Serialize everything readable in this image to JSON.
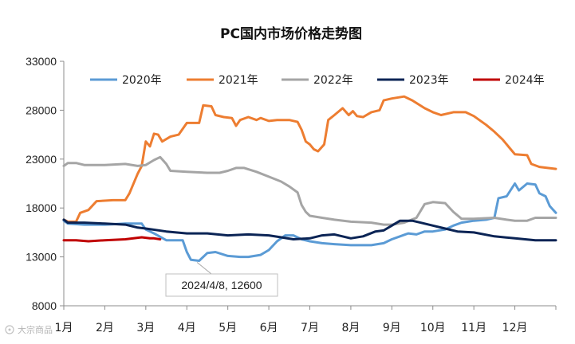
{
  "chart_data": {
    "type": "line",
    "title": "PC国内市场价格走势图",
    "xlabel": "",
    "ylabel": "",
    "ylim": [
      8000,
      33000
    ],
    "yticks": [
      8000,
      13000,
      18000,
      23000,
      28000,
      33000
    ],
    "grid": false,
    "legend_position": "top",
    "x_categories": [
      "1月",
      "2月",
      "3月",
      "4月",
      "5月",
      "6月",
      "7月",
      "8月",
      "9月",
      "10月",
      "11月",
      "12月"
    ],
    "x_unit": "month",
    "series": [
      {
        "name": "2020年",
        "color": "#5b9bd5",
        "points": [
          [
            1.0,
            16700
          ],
          [
            1.1,
            16400
          ],
          [
            1.5,
            16300
          ],
          [
            2.0,
            16300
          ],
          [
            2.5,
            16400
          ],
          [
            2.9,
            16400
          ],
          [
            3.0,
            15800
          ],
          [
            3.2,
            15400
          ],
          [
            3.5,
            14700
          ],
          [
            3.9,
            14700
          ],
          [
            4.0,
            13500
          ],
          [
            4.1,
            12700
          ],
          [
            4.3,
            12600
          ],
          [
            4.5,
            13400
          ],
          [
            4.7,
            13500
          ],
          [
            5.0,
            13100
          ],
          [
            5.3,
            13000
          ],
          [
            5.5,
            13000
          ],
          [
            5.8,
            13200
          ],
          [
            6.0,
            13700
          ],
          [
            6.2,
            14600
          ],
          [
            6.4,
            15200
          ],
          [
            6.6,
            15200
          ],
          [
            6.8,
            14800
          ],
          [
            7.0,
            14600
          ],
          [
            7.3,
            14400
          ],
          [
            7.6,
            14300
          ],
          [
            8.0,
            14200
          ],
          [
            8.5,
            14200
          ],
          [
            8.8,
            14400
          ],
          [
            9.0,
            14800
          ],
          [
            9.2,
            15100
          ],
          [
            9.4,
            15400
          ],
          [
            9.6,
            15300
          ],
          [
            9.8,
            15600
          ],
          [
            10.0,
            15600
          ],
          [
            10.3,
            15800
          ],
          [
            10.5,
            16200
          ],
          [
            10.7,
            16500
          ],
          [
            11.0,
            16700
          ],
          [
            11.3,
            16800
          ],
          [
            11.5,
            17000
          ],
          [
            11.6,
            19000
          ],
          [
            11.8,
            19200
          ],
          [
            12.0,
            20500
          ],
          [
            12.1,
            19800
          ],
          [
            12.3,
            20500
          ],
          [
            12.5,
            20400
          ],
          [
            12.6,
            19500
          ],
          [
            12.75,
            19200
          ],
          [
            12.85,
            18200
          ],
          [
            13.0,
            17500
          ]
        ]
      },
      {
        "name": "2021年",
        "color": "#ed7d31",
        "points": [
          [
            1.0,
            16800
          ],
          [
            1.1,
            16600
          ],
          [
            1.3,
            16600
          ],
          [
            1.4,
            17500
          ],
          [
            1.6,
            17800
          ],
          [
            1.8,
            18700
          ],
          [
            2.2,
            18800
          ],
          [
            2.5,
            18800
          ],
          [
            2.6,
            19500
          ],
          [
            2.8,
            21500
          ],
          [
            2.9,
            22300
          ],
          [
            3.0,
            24800
          ],
          [
            3.1,
            24300
          ],
          [
            3.2,
            25600
          ],
          [
            3.3,
            25500
          ],
          [
            3.4,
            24800
          ],
          [
            3.6,
            25300
          ],
          [
            3.8,
            25500
          ],
          [
            4.0,
            26700
          ],
          [
            4.3,
            26700
          ],
          [
            4.4,
            28500
          ],
          [
            4.6,
            28400
          ],
          [
            4.7,
            27500
          ],
          [
            4.9,
            27300
          ],
          [
            5.1,
            27200
          ],
          [
            5.2,
            26400
          ],
          [
            5.3,
            27000
          ],
          [
            5.5,
            27300
          ],
          [
            5.7,
            27000
          ],
          [
            5.8,
            27200
          ],
          [
            6.0,
            26900
          ],
          [
            6.2,
            27000
          ],
          [
            6.5,
            27000
          ],
          [
            6.7,
            26800
          ],
          [
            6.8,
            26000
          ],
          [
            6.9,
            24800
          ],
          [
            7.0,
            24500
          ],
          [
            7.1,
            24000
          ],
          [
            7.2,
            23800
          ],
          [
            7.35,
            24500
          ],
          [
            7.45,
            27000
          ],
          [
            7.6,
            27500
          ],
          [
            7.8,
            28200
          ],
          [
            7.95,
            27500
          ],
          [
            8.05,
            27900
          ],
          [
            8.15,
            27400
          ],
          [
            8.3,
            27300
          ],
          [
            8.5,
            27800
          ],
          [
            8.7,
            28000
          ],
          [
            8.8,
            29000
          ],
          [
            9.0,
            29200
          ],
          [
            9.3,
            29400
          ],
          [
            9.5,
            29000
          ],
          [
            9.8,
            28200
          ],
          [
            10.0,
            27800
          ],
          [
            10.2,
            27500
          ],
          [
            10.5,
            27800
          ],
          [
            10.8,
            27800
          ],
          [
            11.0,
            27400
          ],
          [
            11.3,
            26500
          ],
          [
            11.5,
            25800
          ],
          [
            11.7,
            25000
          ],
          [
            11.9,
            24000
          ],
          [
            12.0,
            23500
          ],
          [
            12.3,
            23400
          ],
          [
            12.4,
            22500
          ],
          [
            12.6,
            22200
          ],
          [
            13.0,
            22000
          ]
        ]
      },
      {
        "name": "2022年",
        "color": "#a5a5a5",
        "points": [
          [
            1.0,
            22300
          ],
          [
            1.1,
            22600
          ],
          [
            1.3,
            22600
          ],
          [
            1.5,
            22400
          ],
          [
            2.0,
            22400
          ],
          [
            2.5,
            22500
          ],
          [
            2.8,
            22300
          ],
          [
            3.0,
            22400
          ],
          [
            3.2,
            22900
          ],
          [
            3.35,
            23200
          ],
          [
            3.5,
            22500
          ],
          [
            3.6,
            21800
          ],
          [
            4.0,
            21700
          ],
          [
            4.5,
            21600
          ],
          [
            4.8,
            21600
          ],
          [
            5.0,
            21800
          ],
          [
            5.2,
            22100
          ],
          [
            5.4,
            22100
          ],
          [
            5.7,
            21700
          ],
          [
            6.0,
            21200
          ],
          [
            6.3,
            20700
          ],
          [
            6.5,
            20200
          ],
          [
            6.7,
            19600
          ],
          [
            6.8,
            18300
          ],
          [
            6.9,
            17600
          ],
          [
            7.0,
            17200
          ],
          [
            7.3,
            17000
          ],
          [
            7.6,
            16800
          ],
          [
            8.0,
            16600
          ],
          [
            8.5,
            16500
          ],
          [
            8.8,
            16300
          ],
          [
            9.0,
            16300
          ],
          [
            9.3,
            16500
          ],
          [
            9.6,
            17000
          ],
          [
            9.8,
            18400
          ],
          [
            10.0,
            18600
          ],
          [
            10.3,
            18500
          ],
          [
            10.5,
            17600
          ],
          [
            10.7,
            16900
          ],
          [
            11.0,
            16900
          ],
          [
            11.5,
            17000
          ],
          [
            11.8,
            16800
          ],
          [
            12.0,
            16700
          ],
          [
            12.3,
            16700
          ],
          [
            12.5,
            17000
          ],
          [
            13.0,
            17000
          ]
        ]
      },
      {
        "name": "2023年",
        "color": "#0b2455",
        "points": [
          [
            1.0,
            16800
          ],
          [
            1.1,
            16500
          ],
          [
            1.5,
            16500
          ],
          [
            2.0,
            16400
          ],
          [
            2.5,
            16300
          ],
          [
            2.8,
            16000
          ],
          [
            3.0,
            15900
          ],
          [
            3.5,
            15600
          ],
          [
            4.0,
            15400
          ],
          [
            4.5,
            15400
          ],
          [
            5.0,
            15200
          ],
          [
            5.5,
            15300
          ],
          [
            6.0,
            15200
          ],
          [
            6.3,
            15000
          ],
          [
            6.6,
            14800
          ],
          [
            7.0,
            14900
          ],
          [
            7.3,
            15200
          ],
          [
            7.6,
            15300
          ],
          [
            8.0,
            14900
          ],
          [
            8.3,
            15100
          ],
          [
            8.6,
            15600
          ],
          [
            8.8,
            15700
          ],
          [
            9.0,
            16200
          ],
          [
            9.2,
            16700
          ],
          [
            9.5,
            16700
          ],
          [
            9.7,
            16500
          ],
          [
            10.0,
            16200
          ],
          [
            10.3,
            15900
          ],
          [
            10.6,
            15600
          ],
          [
            11.0,
            15500
          ],
          [
            11.5,
            15100
          ],
          [
            12.0,
            14900
          ],
          [
            12.5,
            14700
          ],
          [
            13.0,
            14700
          ]
        ]
      },
      {
        "name": "2024年",
        "color": "#c00000",
        "points": [
          [
            1.0,
            14700
          ],
          [
            1.3,
            14700
          ],
          [
            1.6,
            14600
          ],
          [
            2.0,
            14700
          ],
          [
            2.5,
            14800
          ],
          [
            2.9,
            15000
          ],
          [
            3.1,
            14900
          ],
          [
            3.2,
            14900
          ],
          [
            3.35,
            14800
          ]
        ]
      }
    ],
    "annotations": [
      {
        "text": "2024/4/8, 12600",
        "x": 4.25,
        "y": 12600,
        "series": "2020年"
      }
    ]
  },
  "watermark": "大宗商品"
}
